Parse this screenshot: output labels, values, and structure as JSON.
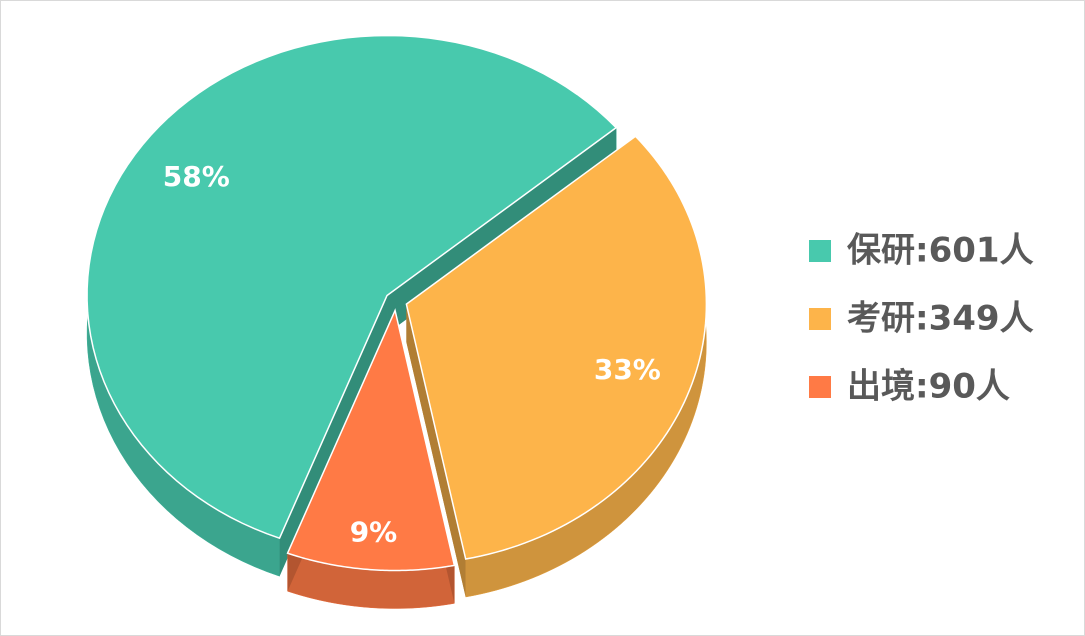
{
  "chart_data": {
    "type": "pie",
    "categories": [
      "保研:601人",
      "考研:349人",
      "出境:90人"
    ],
    "values": [
      58,
      33,
      9
    ],
    "value_labels": [
      "58%",
      "33%",
      "9%"
    ],
    "colors": [
      "#48c9ad",
      "#fdb44a",
      "#ff7a45"
    ],
    "legend": "right"
  }
}
